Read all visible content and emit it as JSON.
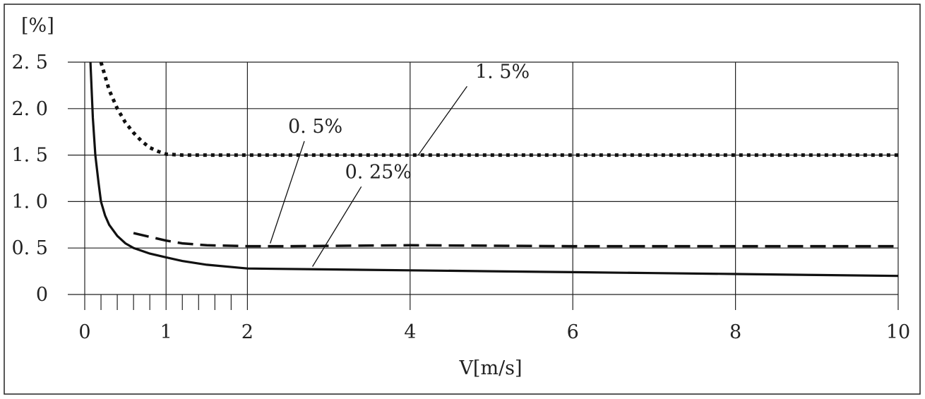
{
  "chart_data": {
    "type": "line",
    "ylabel": "[%]",
    "xlabel": "V[m/s]",
    "xlim": [
      0,
      10
    ],
    "ylim": [
      0,
      2.5
    ],
    "grid": true,
    "x_ticks": [
      0,
      1,
      2,
      4,
      6,
      8,
      10
    ],
    "x_tick_labels": [
      "0",
      "1",
      "2",
      "4",
      "6",
      "8",
      "10"
    ],
    "x_minor_ticks": [
      0.2,
      0.4,
      0.6,
      0.8,
      1.2,
      1.4,
      1.6,
      1.8
    ],
    "y_ticks": [
      0,
      0.5,
      1.0,
      1.5,
      2.0,
      2.5
    ],
    "y_tick_labels": [
      "0",
      "0. 5",
      "1. 0",
      "1. 5",
      "2. 0",
      "2. 5"
    ],
    "series": [
      {
        "name": "1. 5%",
        "style": "dotted",
        "points": [
          [
            0.2,
            2.5
          ],
          [
            0.3,
            2.2
          ],
          [
            0.4,
            2.0
          ],
          [
            0.5,
            1.85
          ],
          [
            0.6,
            1.74
          ],
          [
            0.7,
            1.65
          ],
          [
            0.8,
            1.58
          ],
          [
            0.9,
            1.54
          ],
          [
            1.0,
            1.51
          ],
          [
            1.2,
            1.5
          ],
          [
            2,
            1.5
          ],
          [
            4,
            1.5
          ],
          [
            6,
            1.5
          ],
          [
            8,
            1.5
          ],
          [
            10,
            1.5
          ]
        ]
      },
      {
        "name": "0. 5%",
        "style": "dashed",
        "points": [
          [
            0.6,
            0.66
          ],
          [
            0.8,
            0.62
          ],
          [
            1.0,
            0.58
          ],
          [
            1.2,
            0.55
          ],
          [
            1.5,
            0.53
          ],
          [
            2.0,
            0.52
          ],
          [
            2.5,
            0.52
          ],
          [
            4,
            0.53
          ],
          [
            6,
            0.52
          ],
          [
            8,
            0.52
          ],
          [
            10,
            0.52
          ]
        ]
      },
      {
        "name": "0. 25%",
        "style": "solid",
        "points": [
          [
            0.07,
            2.5
          ],
          [
            0.1,
            1.9
          ],
          [
            0.13,
            1.5
          ],
          [
            0.17,
            1.2
          ],
          [
            0.2,
            1.0
          ],
          [
            0.25,
            0.85
          ],
          [
            0.3,
            0.75
          ],
          [
            0.4,
            0.63
          ],
          [
            0.5,
            0.55
          ],
          [
            0.6,
            0.5
          ],
          [
            0.8,
            0.44
          ],
          [
            1.0,
            0.4
          ],
          [
            1.2,
            0.36
          ],
          [
            1.5,
            0.32
          ],
          [
            2.0,
            0.28
          ],
          [
            3,
            0.27
          ],
          [
            4,
            0.26
          ],
          [
            5,
            0.25
          ],
          [
            6,
            0.24
          ],
          [
            7,
            0.23
          ],
          [
            8,
            0.22
          ],
          [
            9,
            0.21
          ],
          [
            10,
            0.2
          ]
        ]
      }
    ],
    "annotations": [
      {
        "text": "1. 5%",
        "label_at": [
          4.8,
          2.33
        ],
        "line_from": [
          4.7,
          2.24
        ],
        "line_to": [
          4.1,
          1.5
        ]
      },
      {
        "text": "0. 5%",
        "label_at": [
          2.5,
          1.74
        ],
        "line_from": [
          2.7,
          1.65
        ],
        "line_to": [
          2.28,
          0.55
        ]
      },
      {
        "text": "0. 25%",
        "label_at": [
          3.2,
          1.25
        ],
        "line_from": [
          3.4,
          1.16
        ],
        "line_to": [
          2.8,
          0.3
        ]
      }
    ]
  }
}
